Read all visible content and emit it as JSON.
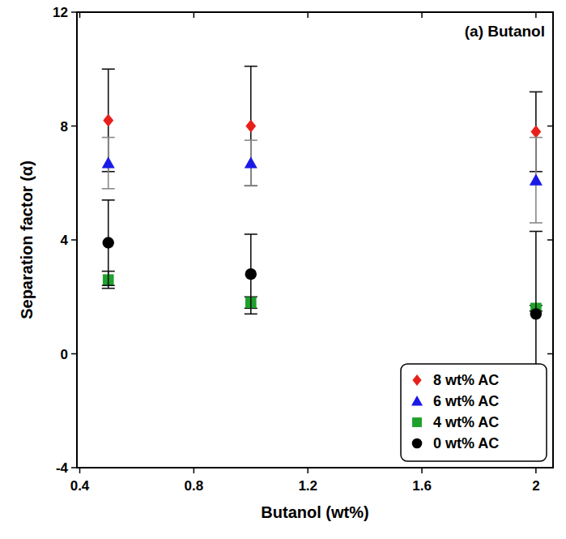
{
  "chart_data": {
    "type": "scatter",
    "title": "(a) Butanol",
    "x_label": "Butanol (wt%)",
    "y_label": "Separation factor (α)",
    "x": [
      0.5,
      1.0,
      2.0
    ],
    "series": [
      {
        "name": "8 wt% AC",
        "color": "#e8201c",
        "marker": "diamond",
        "values": [
          8.2,
          8.0,
          7.8
        ],
        "errors": [
          1.8,
          2.1,
          1.4
        ]
      },
      {
        "name": "6 wt% AC",
        "color": "#1a1ae6",
        "marker": "triangle",
        "values": [
          6.7,
          6.7,
          6.1
        ],
        "errors": [
          0.9,
          0.8,
          1.5
        ]
      },
      {
        "name": "4 wt% AC",
        "color": "#1fa12c",
        "marker": "square",
        "values": [
          2.6,
          1.8,
          1.6
        ],
        "errors": [
          0.3,
          0.2,
          0.1
        ]
      },
      {
        "name": "0 wt% AC",
        "color": "#000000",
        "marker": "circle",
        "values": [
          3.9,
          2.8,
          1.4
        ],
        "errors": [
          1.5,
          1.4,
          2.9
        ]
      }
    ],
    "xlim": [
      0.39,
      2.06
    ],
    "xticks": [
      0.4,
      0.8,
      1.2,
      1.6,
      {
        "value": 2,
        "label": "2"
      }
    ],
    "ylim": [
      -4,
      12
    ],
    "yticks": [
      -4,
      0,
      4,
      8,
      12
    ],
    "grid": false,
    "legend": "lower right"
  }
}
